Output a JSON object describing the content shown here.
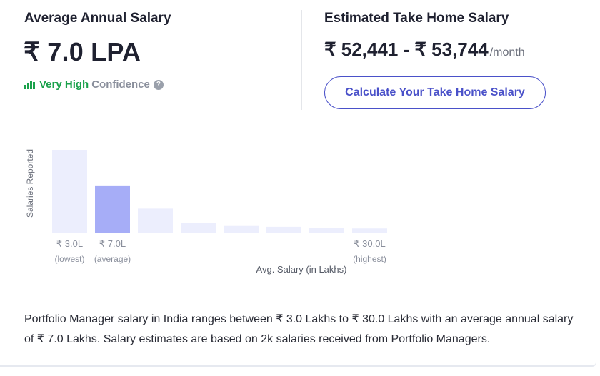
{
  "average": {
    "title": "Average Annual Salary",
    "amount": "₹ 7.0 LPA",
    "confidence_level": "Very High",
    "confidence_label": "Confidence",
    "help_icon": "?"
  },
  "take_home": {
    "title": "Estimated Take Home Salary",
    "range": "₹ 52,441 - ₹ 53,744",
    "unit": "/month",
    "button_label": "Calculate Your Take Home Salary"
  },
  "colors": {
    "accent": "#4a51c9",
    "confidence_green": "#1aa14b",
    "bar_light": "#eceefd",
    "bar_highlight": "#a6adf7"
  },
  "chart_data": {
    "type": "bar",
    "ylabel": "Salaries Reported",
    "xlabel": "Avg. Salary (in Lakhs)",
    "values": [
      100,
      57,
      29,
      12,
      8,
      7,
      6,
      5
    ],
    "highlight_index": 1,
    "tick_labels": [
      {
        "index": 0,
        "value": "₹ 3.0L",
        "note": "(lowest)"
      },
      {
        "index": 1,
        "value": "₹ 7.0L",
        "note": "(average)"
      },
      {
        "index": 7,
        "value": "₹ 30.0L",
        "note": "(highest)"
      }
    ]
  },
  "description": "Portfolio Manager salary in India ranges between ₹ 3.0 Lakhs to ₹ 30.0 Lakhs with an average annual salary of ₹ 7.0 Lakhs. Salary estimates are based on 2k salaries received from Portfolio Managers."
}
